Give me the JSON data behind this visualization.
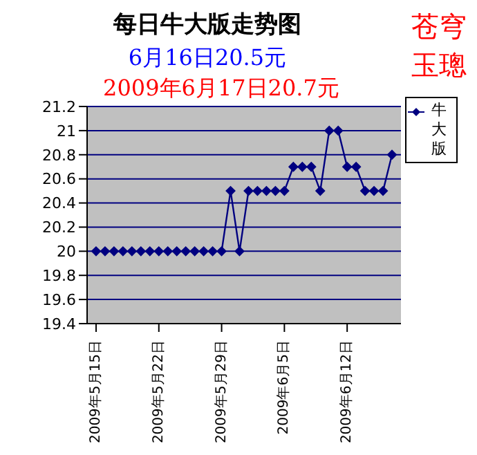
{
  "chart_data": {
    "type": "line",
    "title": "每日牛大版走势图",
    "subtitle": "6月16日20.5元",
    "annotations": [
      "2009年6月17日20.7元",
      "苍穹",
      "玉璁"
    ],
    "x": [
      "2009-05-15",
      "2009-05-16",
      "2009-05-17",
      "2009-05-18",
      "2009-05-19",
      "2009-05-20",
      "2009-05-21",
      "2009-05-22",
      "2009-05-23",
      "2009-05-24",
      "2009-05-25",
      "2009-05-26",
      "2009-05-27",
      "2009-05-28",
      "2009-05-29",
      "2009-05-30",
      "2009-05-31",
      "2009-06-01",
      "2009-06-02",
      "2009-06-03",
      "2009-06-04",
      "2009-06-05",
      "2009-06-06",
      "2009-06-07",
      "2009-06-08",
      "2009-06-09",
      "2009-06-10",
      "2009-06-11",
      "2009-06-12",
      "2009-06-13",
      "2009-06-14",
      "2009-06-15",
      "2009-06-16",
      "2009-06-17"
    ],
    "series": [
      {
        "name": "牛大版",
        "color": "#000080",
        "values": [
          20,
          20,
          20,
          20,
          20,
          20,
          20,
          20,
          20,
          20,
          20,
          20,
          20,
          20,
          20,
          20.5,
          20,
          20.5,
          20.5,
          20.5,
          20.5,
          20.5,
          20.7,
          20.7,
          20.7,
          20.5,
          21,
          21,
          20.7,
          20.7,
          20.5,
          20.5,
          20.5,
          20.8
        ]
      }
    ],
    "xlim": [
      "2009-05-14",
      "2009-06-18"
    ],
    "xticks": [
      {
        "value": "2009-05-15",
        "label": "2009年5月15日"
      },
      {
        "value": "2009-05-22",
        "label": "2009年5月22日"
      },
      {
        "value": "2009-05-29",
        "label": "2009年5月29日"
      },
      {
        "value": "2009-06-05",
        "label": "2009年6月5日"
      },
      {
        "value": "2009-06-12",
        "label": "2009年6月12日"
      }
    ],
    "ylim": [
      19.4,
      21.2
    ],
    "yticks": [
      19.4,
      19.6,
      19.8,
      20,
      20.2,
      20.4,
      20.6,
      20.8,
      21,
      21.2
    ],
    "grid": "y",
    "legend": "right",
    "marker": "diamond",
    "line_style": "solid"
  }
}
